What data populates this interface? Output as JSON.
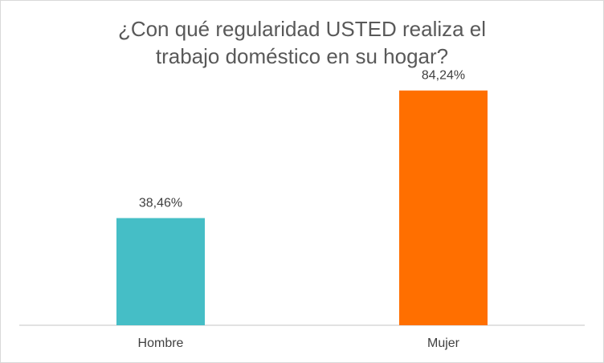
{
  "title_lines": [
    "¿Con qué regularidad USTED realiza el",
    "trabajo doméstico en su hogar?"
  ],
  "colors": {
    "hombre": "#45bec6",
    "mujer": "#ff6f00",
    "axis": "#d9d9d9",
    "text": "#404040",
    "title": "#595959"
  },
  "chart_data": {
    "type": "bar",
    "title": "¿Con qué regularidad USTED realiza el trabajo doméstico en su hogar?",
    "categories": [
      "Hombre",
      "Mujer"
    ],
    "values": [
      38.46,
      84.24
    ],
    "value_labels": [
      "38,46%",
      "84,24%"
    ],
    "bar_colors": [
      "#45bec6",
      "#ff6f00"
    ],
    "xlabel": "",
    "ylabel": "",
    "ylim": [
      0,
      100
    ],
    "grid": false,
    "legend": "none"
  }
}
